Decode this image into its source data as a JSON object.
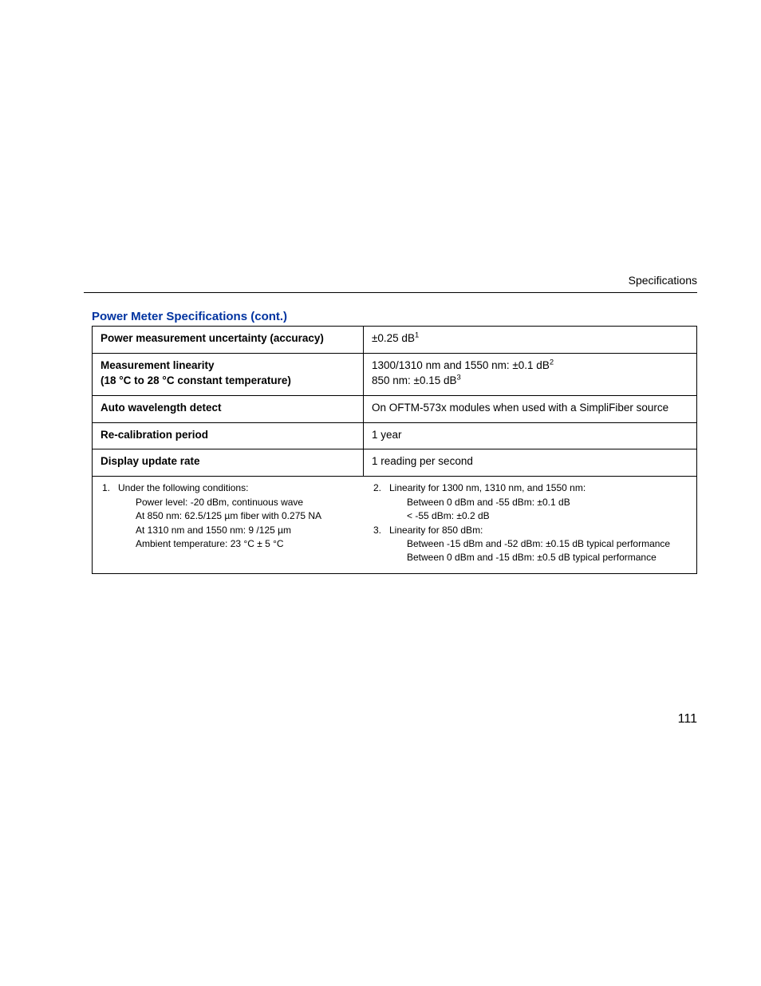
{
  "header": {
    "label": "Specifications"
  },
  "section": {
    "title": "Power Meter Specifications (cont.)"
  },
  "table": {
    "rows": [
      {
        "label": "Power measurement uncertainty (accuracy)",
        "value_pre": "±0.25 dB",
        "sup": "1",
        "value_post": ""
      },
      {
        "label_l1": "Measurement linearity",
        "label_l2": "(18 °C to 28 °C constant temperature)",
        "value_l1_pre": "1300/1310 nm and 1550 nm: ±0.1 dB",
        "value_l1_sup": "2",
        "value_l2_pre": "850 nm: ±0.15 dB",
        "value_l2_sup": "3"
      },
      {
        "label": "Auto wavelength detect",
        "value": "On OFTM-573x modules when used with a SimpliFiber source"
      },
      {
        "label": "Re-calibration period",
        "value": "1 year"
      },
      {
        "label": "Display update rate",
        "value": "1 reading per second"
      }
    ]
  },
  "footnotes": {
    "n1": {
      "num": "1.",
      "l1": "Under the following conditions:",
      "l2": "Power level: -20 dBm, continuous wave",
      "l3": "At 850 nm: 62.5/125 µm fiber with 0.275 NA",
      "l4": "At 1310 nm and 1550 nm: 9 /125 µm",
      "l5": "Ambient temperature: 23 °C ± 5 °C"
    },
    "n2": {
      "num": "2.",
      "l1": "Linearity for 1300 nm, 1310 nm, and 1550 nm:",
      "l2": "Between 0 dBm and -55 dBm: ±0.1 dB",
      "l3": "< -55 dBm: ±0.2 dB"
    },
    "n3": {
      "num": "3.",
      "l1": "Linearity for 850 dBm:",
      "l2": "Between -15 dBm and -52 dBm: ±0.15 dB typical performance",
      "l3": "Between 0 dBm and -15 dBm: ±0.5 dB typical performance"
    }
  },
  "pageNumber": "111"
}
